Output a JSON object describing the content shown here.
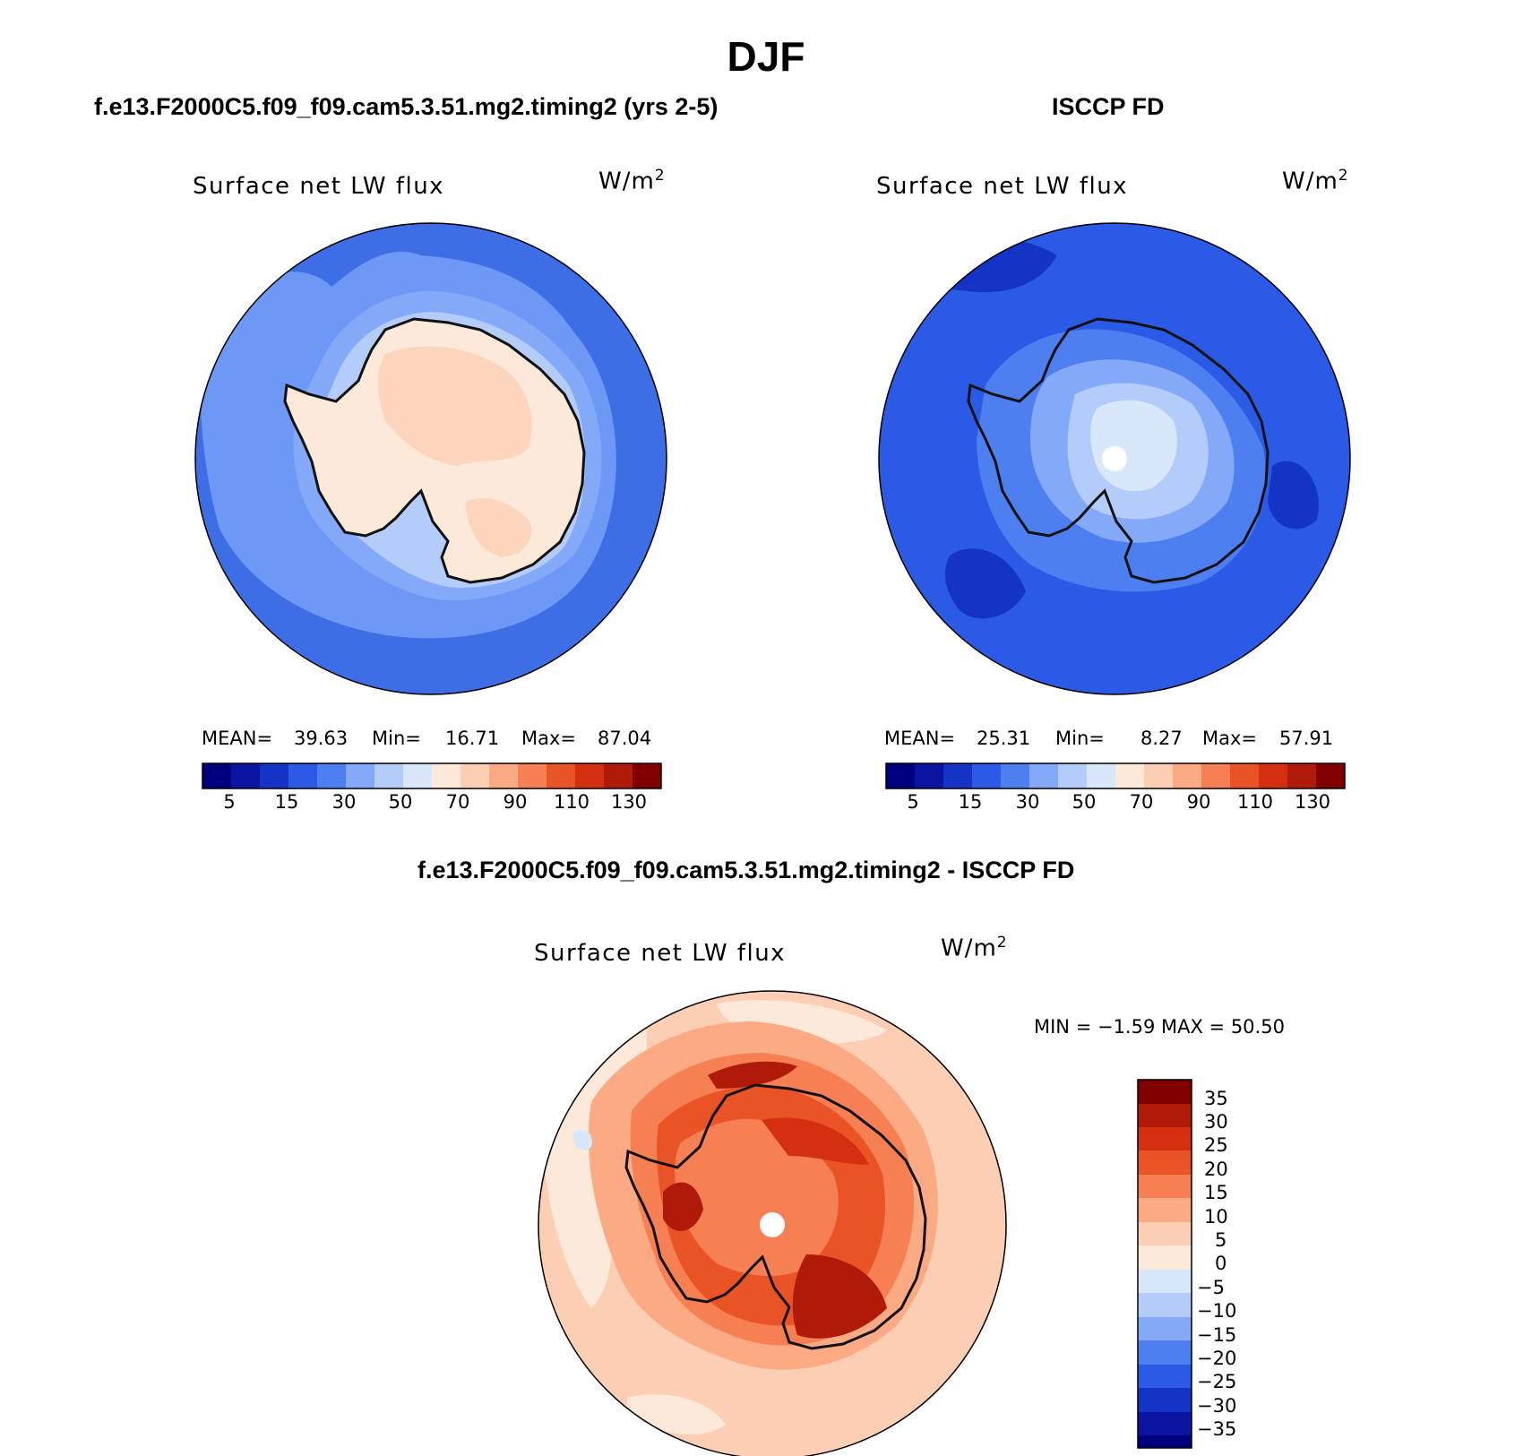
{
  "title": "DJF",
  "colors": {
    "diverging": [
      "#00007f",
      "#0a14a0",
      "#1434c8",
      "#2a5ae6",
      "#4d7ff0",
      "#83a9f8",
      "#b4ccfa",
      "#d8e8fa",
      "#fde9d9",
      "#fccfb4",
      "#fbaa84",
      "#f68053",
      "#e95325",
      "#d43010",
      "#b01a08",
      "#800000"
    ],
    "ocean_mid": "#3e6ee6",
    "ocean_light": "#6d98f5",
    "coast": "#111111"
  },
  "panels": {
    "model": {
      "header": "f.e13.F2000C5.f09_f09.cam5.3.51.mg2.timing2 (yrs 2-5)",
      "title": "Surface net LW flux",
      "unit": "W/m",
      "unit_sup": "2",
      "mean_label": "MEAN=",
      "mean": "39.63",
      "min_label": "Min=",
      "min": "16.71",
      "max_label": "Max=",
      "max": "87.04",
      "ticks": [
        "5",
        "15",
        "30",
        "50",
        "70",
        "90",
        "110",
        "130"
      ]
    },
    "obs": {
      "header": "ISCCP FD",
      "title": "Surface net LW flux",
      "unit": "W/m",
      "unit_sup": "2",
      "mean_label": "MEAN=",
      "mean": "25.31",
      "min_label": "Min=",
      "min": "8.27",
      "max_label": "Max=",
      "max": "57.91",
      "ticks": [
        "5",
        "15",
        "30",
        "50",
        "70",
        "90",
        "110",
        "130"
      ]
    },
    "diff": {
      "header": "f.e13.F2000C5.f09_f09.cam5.3.51.mg2.timing2 - ISCCP FD",
      "title": "Surface net LW flux",
      "unit": "W/m",
      "unit_sup": "2",
      "minmax": "MIN =   −1.59 MAX =   50.50",
      "ticks": [
        "35",
        "30",
        "25",
        "20",
        "15",
        "10",
        "5",
        "0",
        "−5",
        "−10",
        "−15",
        "−20",
        "−25",
        "−30",
        "−35"
      ]
    }
  }
}
